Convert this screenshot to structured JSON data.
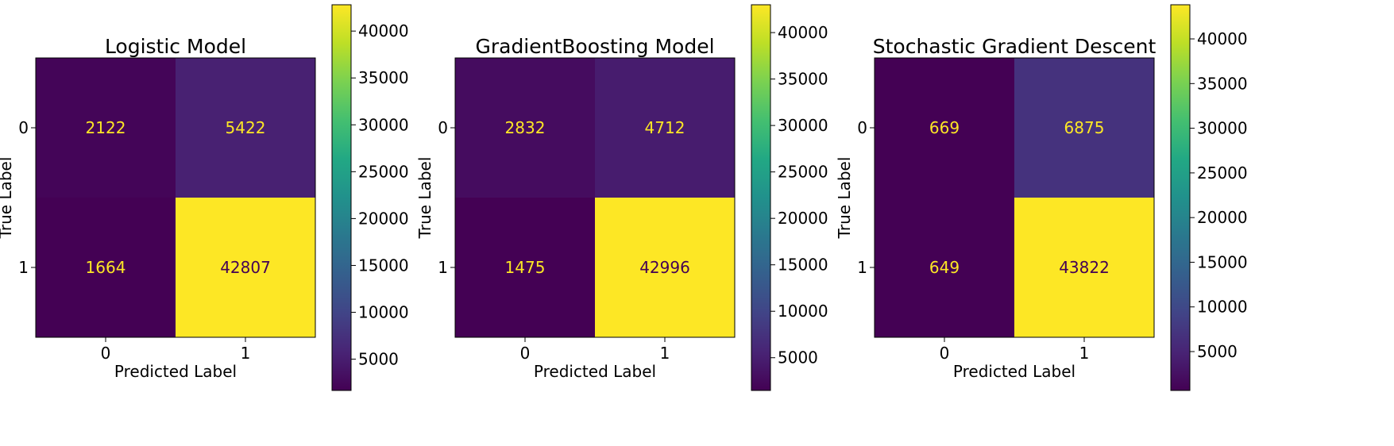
{
  "chart_data": [
    {
      "type": "heatmap",
      "title": "Logistic Model",
      "xlabel": "Predicted Label",
      "ylabel": "True Label",
      "x_categories": [
        "0",
        "1"
      ],
      "y_categories": [
        "0",
        "1"
      ],
      "matrix": [
        [
          2122,
          5422
        ],
        [
          1664,
          42807
        ]
      ],
      "colormap": "viridis",
      "colorbar_ticks": [
        5000,
        10000,
        15000,
        20000,
        25000,
        30000,
        35000,
        40000
      ],
      "colorbar_ticks_text": [
        "5000",
        "10000",
        "15000",
        "20000",
        "25000",
        "30000",
        "35000",
        "40000"
      ],
      "grid": false
    },
    {
      "type": "heatmap",
      "title": "GradientBoosting Model",
      "xlabel": "Predicted Label",
      "ylabel": "True Label",
      "x_categories": [
        "0",
        "1"
      ],
      "y_categories": [
        "0",
        "1"
      ],
      "matrix": [
        [
          2832,
          4712
        ],
        [
          1475,
          42996
        ]
      ],
      "colormap": "viridis",
      "colorbar_ticks": [
        5000,
        10000,
        15000,
        20000,
        25000,
        30000,
        35000,
        40000
      ],
      "colorbar_ticks_text": [
        "5000",
        "10000",
        "15000",
        "20000",
        "25000",
        "30000",
        "35000",
        "40000"
      ],
      "grid": false
    },
    {
      "type": "heatmap",
      "title": "Stochastic Gradient Descent",
      "xlabel": "Predicted Label",
      "ylabel": "True Label",
      "x_categories": [
        "0",
        "1"
      ],
      "y_categories": [
        "0",
        "1"
      ],
      "matrix": [
        [
          669,
          6875
        ],
        [
          649,
          43822
        ]
      ],
      "colormap": "viridis",
      "colorbar_ticks": [
        5000,
        10000,
        15000,
        20000,
        25000,
        30000,
        35000,
        40000
      ],
      "colorbar_ticks_text": [
        "5000",
        "10000",
        "15000",
        "20000",
        "25000",
        "30000",
        "35000",
        "40000"
      ],
      "grid": false
    }
  ]
}
